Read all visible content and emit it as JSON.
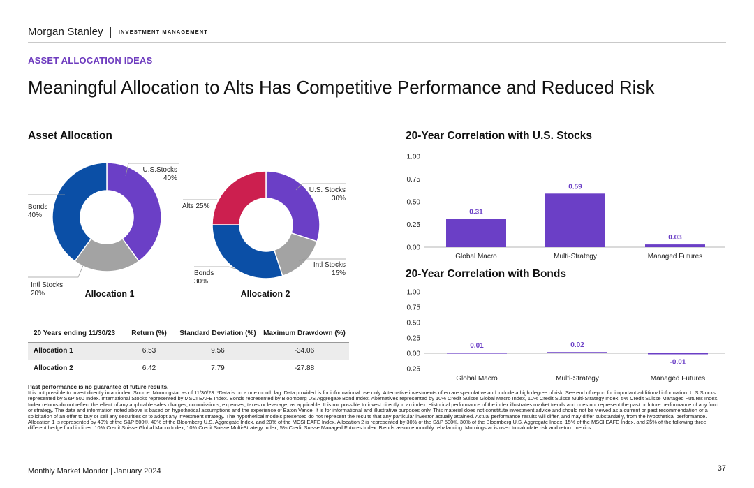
{
  "header": {
    "brand": "Morgan Stanley",
    "sub_brand": "INVESTMENT MANAGEMENT",
    "kicker": "ASSET ALLOCATION IDEAS",
    "headline": "Meaningful Allocation to Alts Has Competitive Performance and Reduced Risk"
  },
  "colors": {
    "us_stocks": "#6b3fc6",
    "intl_stocks": "#a3a3a3",
    "bonds": "#0b4fa6",
    "alts": "#cc1f4f",
    "bar": "#6b3fc6",
    "kicker": "#6e3cbf"
  },
  "asset_allocation": {
    "title": "Asset Allocation",
    "allocation1": {
      "name": "Allocation 1",
      "labels": [
        "U.S.Stocks",
        "40%",
        "Bonds",
        "40%",
        "Intl Stocks",
        "20%"
      ]
    },
    "allocation2": {
      "name": "Allocation 2",
      "labels": [
        "U.S. Stocks",
        "30%",
        "Alts 25%",
        "Bonds",
        "30%",
        "Intl Stocks",
        "15%"
      ]
    }
  },
  "table": {
    "headers": [
      "20 Years ending 11/30/23",
      "Return (%)",
      "Standard Deviation (%)",
      "Maximum Drawdown (%)"
    ],
    "rows": [
      [
        "Allocation 1",
        "6.53",
        "9.56",
        "-34.06"
      ],
      [
        "Allocation 2",
        "6.42",
        "7.79",
        "-27.88"
      ]
    ]
  },
  "chart_data": [
    {
      "type": "pie",
      "title": "Allocation 1",
      "categories": [
        "U.S. Stocks",
        "Intl Stocks",
        "Bonds"
      ],
      "values": [
        40,
        20,
        40
      ],
      "colors": [
        "#6b3fc6",
        "#a3a3a3",
        "#0b4fa6"
      ],
      "donut": true
    },
    {
      "type": "pie",
      "title": "Allocation 2",
      "categories": [
        "U.S. Stocks",
        "Intl Stocks",
        "Bonds",
        "Alts"
      ],
      "values": [
        30,
        15,
        30,
        25
      ],
      "colors": [
        "#6b3fc6",
        "#a3a3a3",
        "#0b4fa6",
        "#cc1f4f"
      ],
      "donut": true
    },
    {
      "type": "bar",
      "title": "20-Year Correlation with U.S. Stocks",
      "categories": [
        "Global Macro",
        "Multi-Strategy",
        "Managed Futures"
      ],
      "values": [
        0.31,
        0.59,
        0.03
      ],
      "value_labels": [
        "0.31",
        "0.59",
        "0.03"
      ],
      "ylim": [
        0,
        1
      ],
      "ticks": [
        "1.00",
        "0.75",
        "0.50",
        "0.25",
        "0.00"
      ],
      "grid": false
    },
    {
      "type": "bar",
      "title": "20-Year Correlation with Bonds",
      "categories": [
        "Global Macro",
        "Multi-Strategy",
        "Managed Futures"
      ],
      "values": [
        0.01,
        0.02,
        -0.01
      ],
      "value_labels": [
        "0.01",
        "0.02",
        "-0.01"
      ],
      "ylim": [
        -0.25,
        1
      ],
      "ticks": [
        "1.00",
        "0.75",
        "0.50",
        "0.25",
        "0.00",
        "-0.25"
      ],
      "grid": false
    }
  ],
  "disclaimer": {
    "heading": "Past performance is no guarantee of future results.",
    "body": "It is not possible to invest directly in an index. Source: Morningstar as of 11/30/23. *Data is on a one month lag. Data provided is for informational use only. Alternative investments often are speculative and include a high degree of risk. See end of report for important additional information. U.S Stocks represented by S&P 500 Index. International Stocks represented by MSCI EAFE Index. Bonds represented by Bloomberg US Aggregate Bond Index. Alternatives represented by 10% Credit Suisse Global Macro Index, 10% Credit Suisse Multi-Strategy Index, 5% Credit Suisse Managed Futures Index. Index returns do not reflect the effect of any applicable sales charges, commissions, expenses, taxes or leverage, as applicable. It is not possible to invest directly in an index. Historical performance of the index illustrates market trends and does not represent the past or future performance of any fund or strategy. The data and information noted above is based on hypothetical assumptions and the experience of Eaton Vance. It is for informational and illustrative purposes only. This material does not constitute investment advice and should not be viewed as a current or past recommendation or a solicitation of an offer to buy or sell any securities or to adopt any investment strategy. The hypothetical models presented do not represent the results that any particular investor actually attained. Actual performance results will differ, and may differ substantially, from the hypothetical performance. Allocation 1 is represented by 40% of the S&P 500®, 40% of the Bloomberg U.S. Aggregate Index, and 20% of the MCSI EAFE Index. Allocation 2 is represented by 30% of the S&P 500®, 30% of the Bloomberg U.S. Aggregate Index, 15% of the MSCI EAFE Index, and 25% of the following three different hedge fund indices: 10% Credit Suisse Global Macro Index, 10% Credit Suisse Multi-Strategy Index, 5% Credit Suisse Managed Futures Index. Blends assume monthly rebalancing. Morningstar is used to calculate risk and return metrics."
  },
  "footer": {
    "left": "Monthly Market Monitor | January 2024",
    "page": "37"
  }
}
